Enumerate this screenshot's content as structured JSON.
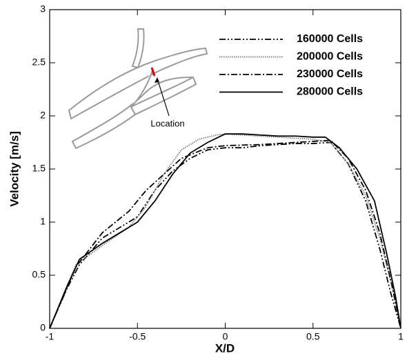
{
  "chart_data": {
    "type": "line",
    "x_label": "X/D",
    "y_label": "Velocity [m/s]",
    "annotation": "Location",
    "xlim": [
      -1,
      1
    ],
    "xticks": [
      -1,
      -0.5,
      0,
      0.5,
      1
    ],
    "ylim": [
      0,
      3
    ],
    "yticks": [
      0,
      0.5,
      1,
      1.5,
      2,
      2.5,
      3
    ],
    "legend": "upper right",
    "series": [
      {
        "name": "160000 Cells",
        "color": "#000000",
        "dash": "9,3,2,3,2,3",
        "x": [
          -1,
          -0.9,
          -0.83,
          -0.7,
          -0.5,
          -0.4,
          -0.3,
          -0.2,
          -0.1,
          0,
          0.1,
          0.2,
          0.3,
          0.4,
          0.5,
          0.6,
          0.7,
          0.8,
          0.88,
          0.94,
          1
        ],
        "values": [
          0,
          0.38,
          0.6,
          0.85,
          1.05,
          1.3,
          1.48,
          1.6,
          1.68,
          1.7,
          1.7,
          1.72,
          1.73,
          1.74,
          1.74,
          1.75,
          1.55,
          1.2,
          0.75,
          0.35,
          0
        ]
      },
      {
        "name": "200000 Cells",
        "color": "#777777",
        "dash": "1.5,1.5",
        "x": [
          -1,
          -0.85,
          -0.7,
          -0.55,
          -0.45,
          -0.35,
          -0.25,
          -0.15,
          -0.05,
          0,
          0.3,
          0.5,
          0.6,
          0.7,
          0.8,
          0.88,
          0.95,
          1
        ],
        "values": [
          0,
          0.6,
          0.78,
          0.95,
          1.15,
          1.45,
          1.68,
          1.78,
          1.82,
          1.83,
          1.8,
          1.78,
          1.75,
          1.55,
          1.25,
          0.85,
          0.4,
          0
        ]
      },
      {
        "name": "230000 Cells",
        "color": "#000000",
        "dash": "9,3,2,3",
        "x": [
          -1,
          -0.85,
          -0.7,
          -0.55,
          -0.45,
          -0.35,
          -0.25,
          -0.1,
          0,
          0.2,
          0.5,
          0.6,
          0.7,
          0.8,
          0.88,
          0.95,
          1
        ],
        "values": [
          0,
          0.58,
          0.9,
          1.1,
          1.3,
          1.45,
          1.6,
          1.7,
          1.72,
          1.73,
          1.76,
          1.77,
          1.6,
          1.3,
          0.9,
          0.4,
          0
        ]
      },
      {
        "name": "280000 Cells",
        "color": "#000000",
        "dash": "none",
        "x": [
          -1,
          -0.9,
          -0.83,
          -0.7,
          -0.5,
          -0.4,
          -0.3,
          -0.2,
          -0.1,
          0,
          0.1,
          0.2,
          0.3,
          0.4,
          0.5,
          0.57,
          0.65,
          0.75,
          0.85,
          0.92,
          0.97,
          1
        ],
        "values": [
          0,
          0.4,
          0.65,
          0.8,
          1.0,
          1.2,
          1.45,
          1.65,
          1.75,
          1.83,
          1.83,
          1.82,
          1.81,
          1.81,
          1.8,
          1.8,
          1.7,
          1.5,
          1.2,
          0.7,
          0.3,
          0
        ]
      }
    ]
  }
}
